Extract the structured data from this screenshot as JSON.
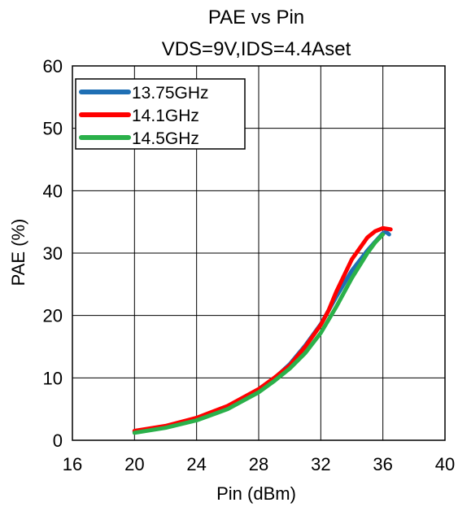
{
  "chart_data": {
    "type": "line",
    "title": "PAE vs Pin",
    "subtitle": "VDS=9V,IDS=4.4Aset",
    "xlabel": "Pin (dBm)",
    "ylabel": "PAE (%)",
    "xlim": [
      16,
      40
    ],
    "ylim": [
      0,
      60
    ],
    "xticks": [
      16,
      20,
      24,
      28,
      32,
      36,
      40
    ],
    "yticks": [
      0,
      10,
      20,
      30,
      40,
      50,
      60
    ],
    "grid": true,
    "legend_position": "top-left",
    "series": [
      {
        "name": "13.75GHz",
        "color": "#1f6fb4",
        "x": [
          20,
          22,
          24,
          26,
          28,
          29,
          30,
          31,
          32,
          33,
          34,
          35,
          35.5,
          36,
          36.2,
          36.4
        ],
        "y": [
          1.4,
          2.2,
          3.4,
          5.2,
          8.0,
          9.9,
          12.2,
          15.2,
          18.6,
          23.0,
          27.2,
          30.4,
          31.8,
          33.2,
          33.4,
          33.0
        ]
      },
      {
        "name": "14.1GHz",
        "color": "#ff0000",
        "x": [
          20,
          22,
          24,
          26,
          28,
          29,
          30,
          31,
          32,
          32.5,
          33,
          34,
          35,
          35.5,
          36,
          36.5
        ],
        "y": [
          1.5,
          2.3,
          3.6,
          5.5,
          8.2,
          10.0,
          12.0,
          15.0,
          18.5,
          20.8,
          23.8,
          29.0,
          32.5,
          33.5,
          34.0,
          33.8
        ]
      },
      {
        "name": "14.5GHz",
        "color": "#2ab04a",
        "x": [
          20,
          22,
          24,
          26,
          28,
          29,
          30,
          31,
          32,
          33,
          34,
          35,
          35.5,
          36
        ],
        "y": [
          1.2,
          2.0,
          3.2,
          5.0,
          7.7,
          9.5,
          11.5,
          14.0,
          17.2,
          21.4,
          26.0,
          30.0,
          31.7,
          33.0
        ]
      }
    ]
  }
}
